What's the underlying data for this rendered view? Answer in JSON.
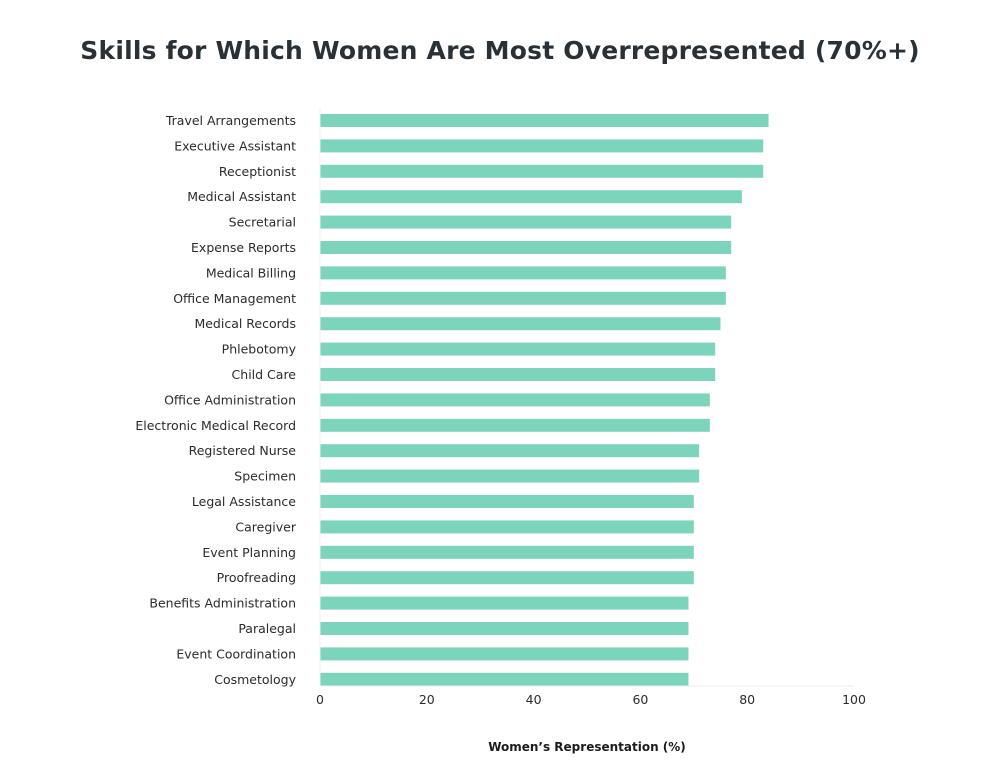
{
  "chart_data": {
    "type": "bar",
    "orientation": "horizontal",
    "title": "Skills for Which Women Are Most Overrepresented (70%+)",
    "xlabel": "Women’s Representation (%)",
    "ylabel": "",
    "xlim": [
      0,
      100
    ],
    "xticks": [
      0,
      20,
      40,
      60,
      80,
      100
    ],
    "grid": false,
    "bar_color": "#7dd4bc",
    "categories": [
      "Travel Arrangements",
      "Executive Assistant",
      "Receptionist",
      "Medical Assistant",
      "Secretarial",
      "Expense Reports",
      "Medical Billing",
      "Office Management",
      "Medical Records",
      "Phlebotomy",
      "Child Care",
      "Office Administration",
      "Electronic Medical Record",
      "Registered Nurse",
      "Specimen",
      "Legal Assistance",
      "Caregiver",
      "Event Planning",
      "Proofreading",
      "Benefits Administration",
      "Paralegal",
      "Event Coordination",
      "Cosmetology"
    ],
    "values": [
      84,
      83,
      83,
      79,
      77,
      77,
      76,
      76,
      75,
      74,
      74,
      73,
      73,
      71,
      71,
      70,
      70,
      70,
      70,
      69,
      69,
      69,
      69
    ]
  }
}
